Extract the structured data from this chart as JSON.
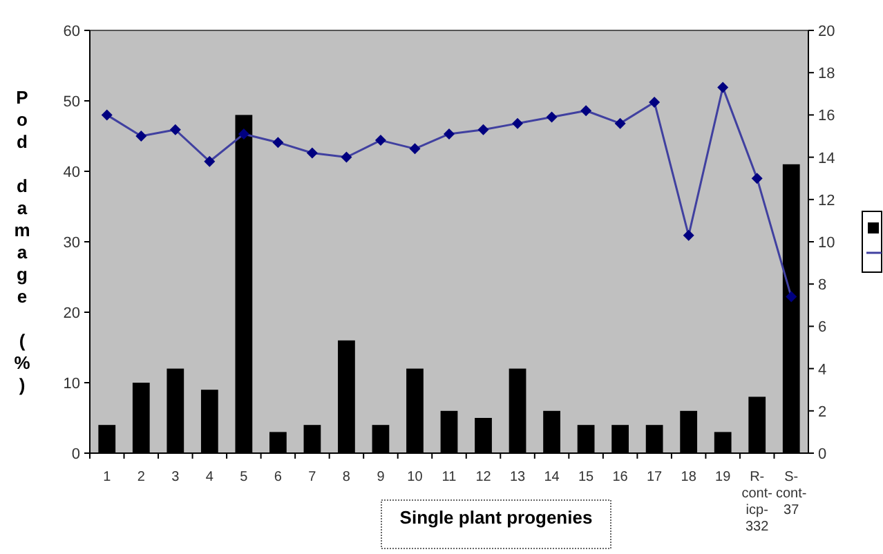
{
  "chart_data": {
    "type": "bar",
    "xlabel": "Single plant progenies",
    "ylabel": "Pod damage (%)",
    "categories": [
      "1",
      "2",
      "3",
      "4",
      "5",
      "6",
      "7",
      "8",
      "9",
      "10",
      "11",
      "12",
      "13",
      "14",
      "15",
      "16",
      "17",
      "18",
      "19",
      "R-cont-icp-332",
      "S-cont-37"
    ],
    "series": [
      {
        "color": "#000000",
        "values": [
          4,
          10,
          12,
          9,
          48,
          3,
          4,
          16,
          4,
          12,
          6,
          5,
          12,
          6,
          4,
          4,
          4,
          6,
          3,
          8,
          41
        ]
      },
      {
        "type": "line",
        "axis": "y2",
        "color": "#4040a0",
        "marker": "diamond",
        "line_style": "solid",
        "values": [
          16,
          15,
          15.3,
          13.8,
          15.1,
          14.7,
          14.2,
          14,
          14.8,
          14.4,
          15.1,
          15.3,
          15.6,
          15.9,
          16.2,
          15.6,
          16.6,
          10.3,
          17.3,
          13,
          7.4
        ]
      }
    ],
    "ylim": [
      0,
      60
    ],
    "yticks": [
      0,
      10,
      20,
      30,
      40,
      50,
      60
    ],
    "y2lim": [
      0,
      20
    ],
    "y2ticks": [
      0,
      2,
      4,
      6,
      8,
      10,
      12,
      14,
      16,
      18,
      20
    ],
    "grid": false
  }
}
